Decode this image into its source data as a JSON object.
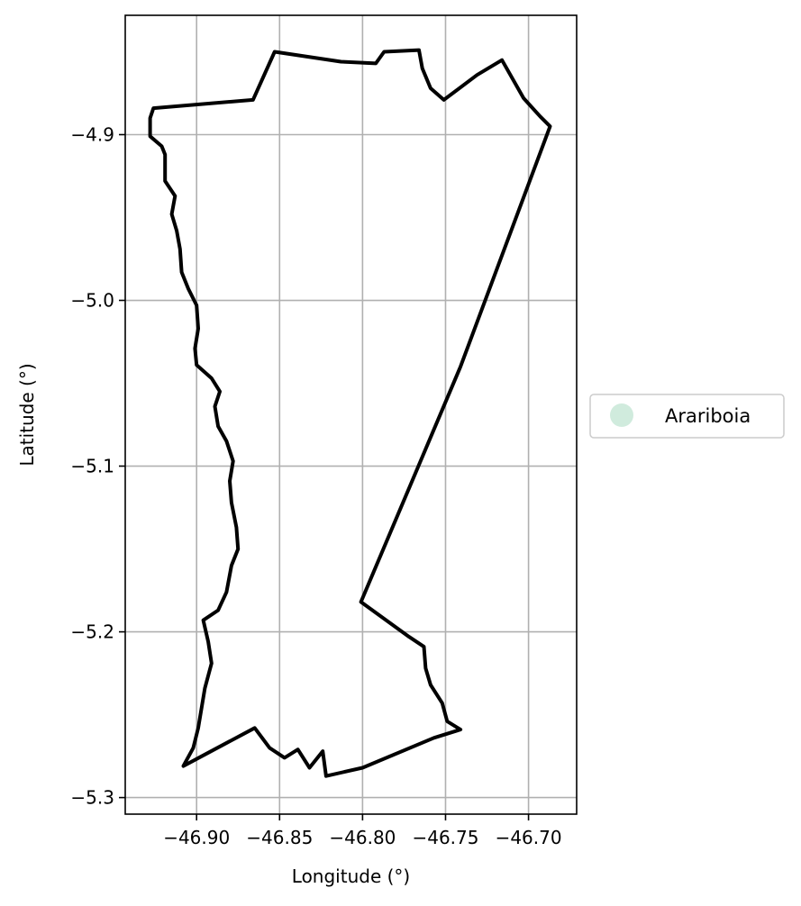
{
  "chart_data": {
    "type": "map",
    "title": "",
    "xlabel": "Longitude (°)",
    "ylabel": "Latitude (°)",
    "xlim": [
      -46.943,
      -46.671
    ],
    "ylim": [
      -5.31,
      -4.828
    ],
    "xticks": [
      -46.9,
      -46.85,
      -46.8,
      -46.75,
      -46.7
    ],
    "xtick_labels": [
      "−46.90",
      "−46.85",
      "−46.80",
      "−46.75",
      "−46.70"
    ],
    "yticks": [
      -4.9,
      -5.0,
      -5.1,
      -5.2,
      -5.3
    ],
    "ytick_labels": [
      "−4.9",
      "−5.0",
      "−5.1",
      "−5.2",
      "−5.3"
    ],
    "grid": true,
    "legend_position": "center-right, outside plot",
    "legend_entries": [
      {
        "label": "Arariboia",
        "color": "#d0ebdd"
      }
    ],
    "boundary_color": "#000000",
    "boundary": [
      [
        -46.853,
        -4.85
      ],
      [
        -46.813,
        -4.856
      ],
      [
        -46.792,
        -4.857
      ],
      [
        -46.787,
        -4.85
      ],
      [
        -46.766,
        -4.849
      ],
      [
        -46.764,
        -4.86
      ],
      [
        -46.759,
        -4.872
      ],
      [
        -46.751,
        -4.879
      ],
      [
        -46.731,
        -4.864
      ],
      [
        -46.716,
        -4.855
      ],
      [
        -46.703,
        -4.878
      ],
      [
        -46.693,
        -4.889
      ],
      [
        -46.687,
        -4.895
      ],
      [
        -46.741,
        -5.04
      ],
      [
        -46.801,
        -5.182
      ],
      [
        -46.772,
        -5.203
      ],
      [
        -46.763,
        -5.209
      ],
      [
        -46.762,
        -5.222
      ],
      [
        -46.759,
        -5.232
      ],
      [
        -46.752,
        -5.243
      ],
      [
        -46.749,
        -5.254
      ],
      [
        -46.741,
        -5.259
      ],
      [
        -46.757,
        -5.264
      ],
      [
        -46.8,
        -5.282
      ],
      [
        -46.822,
        -5.287
      ],
      [
        -46.824,
        -5.272
      ],
      [
        -46.832,
        -5.282
      ],
      [
        -46.839,
        -5.271
      ],
      [
        -46.847,
        -5.276
      ],
      [
        -46.856,
        -5.27
      ],
      [
        -46.865,
        -5.258
      ],
      [
        -46.895,
        -5.274
      ],
      [
        -46.908,
        -5.281
      ],
      [
        -46.902,
        -5.27
      ],
      [
        -46.899,
        -5.258
      ],
      [
        -46.897,
        -5.246
      ],
      [
        -46.895,
        -5.234
      ],
      [
        -46.891,
        -5.219
      ],
      [
        -46.893,
        -5.206
      ],
      [
        -46.896,
        -5.193
      ],
      [
        -46.887,
        -5.187
      ],
      [
        -46.882,
        -5.176
      ],
      [
        -46.879,
        -5.16
      ],
      [
        -46.875,
        -5.15
      ],
      [
        -46.876,
        -5.137
      ],
      [
        -46.879,
        -5.122
      ],
      [
        -46.88,
        -5.109
      ],
      [
        -46.878,
        -5.097
      ],
      [
        -46.882,
        -5.085
      ],
      [
        -46.887,
        -5.076
      ],
      [
        -46.889,
        -5.064
      ],
      [
        -46.886,
        -5.055
      ],
      [
        -46.891,
        -5.047
      ],
      [
        -46.9,
        -5.039
      ],
      [
        -46.901,
        -5.029
      ],
      [
        -46.899,
        -5.017
      ],
      [
        -46.9,
        -5.003
      ],
      [
        -46.905,
        -4.993
      ],
      [
        -46.909,
        -4.983
      ],
      [
        -46.91,
        -4.969
      ],
      [
        -46.912,
        -4.958
      ],
      [
        -46.915,
        -4.948
      ],
      [
        -46.913,
        -4.937
      ],
      [
        -46.919,
        -4.928
      ],
      [
        -46.919,
        -4.912
      ],
      [
        -46.921,
        -4.907
      ],
      [
        -46.928,
        -4.901
      ],
      [
        -46.928,
        -4.89
      ],
      [
        -46.926,
        -4.884
      ],
      [
        -46.866,
        -4.879
      ],
      [
        -46.853,
        -4.85
      ]
    ]
  },
  "legend": {
    "label": "Arariboia"
  }
}
